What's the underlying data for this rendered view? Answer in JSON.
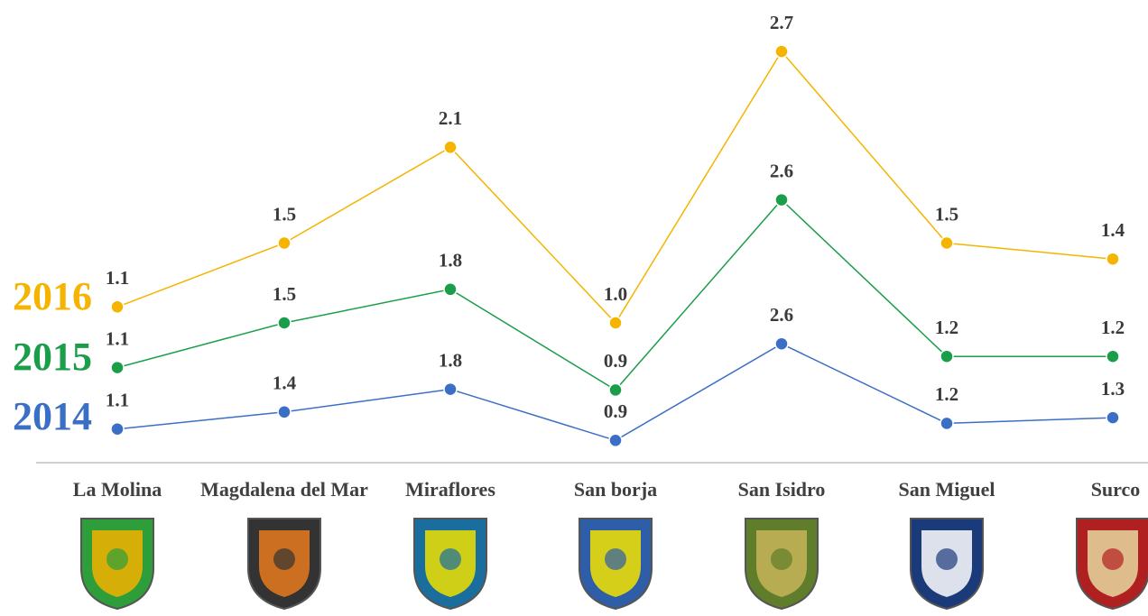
{
  "chart_data": {
    "type": "line",
    "categories": [
      "La Molina",
      "Magdalena del Mar",
      "Miraflores",
      "San borja",
      "San Isidro",
      "San Miguel",
      "Surco"
    ],
    "series": [
      {
        "name": "2016",
        "color": "#f5b400",
        "values": [
          1.1,
          1.5,
          2.1,
          1.0,
          2.7,
          1.5,
          1.4
        ],
        "value_labels": [
          "1.1",
          "1.5",
          "2.1",
          "1.0",
          "2.7",
          "1.5",
          "1.4"
        ]
      },
      {
        "name": "2015",
        "color": "#1a9e4a",
        "values": [
          1.1,
          1.5,
          1.8,
          0.9,
          2.6,
          1.2,
          1.2
        ]
      },
      {
        "name": "2014",
        "color": "#3b6fc6",
        "values": [
          1.1,
          1.4,
          1.8,
          0.9,
          2.6,
          1.2,
          1.3
        ]
      }
    ]
  }
}
